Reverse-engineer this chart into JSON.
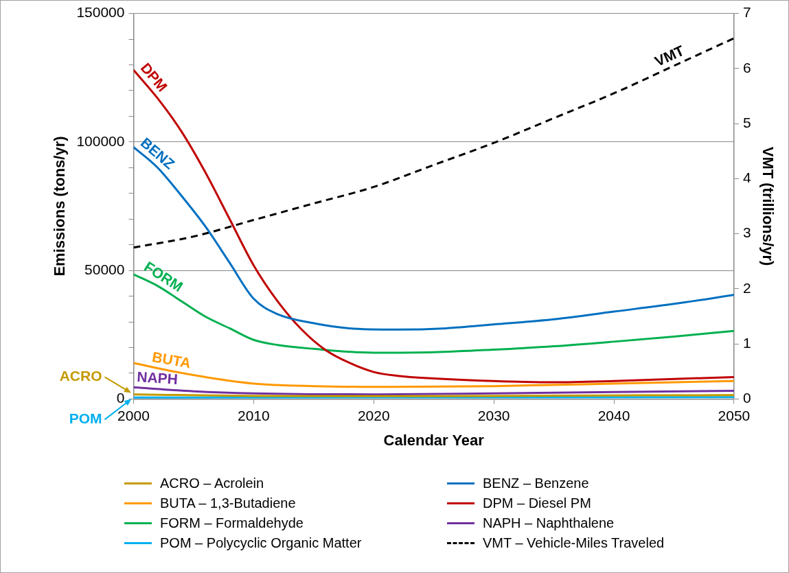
{
  "chart_data": {
    "type": "line",
    "xlabel": "Calendar Year",
    "ylabel": "Emissions (tons/yr)",
    "y2label": "VMT (trillions/yr)",
    "xlim": [
      2000,
      2050
    ],
    "xticks": [
      2000,
      2010,
      2020,
      2030,
      2040,
      2050
    ],
    "ylim": [
      0,
      150000
    ],
    "yticks": [
      0,
      {
        "value": 10000,
        "label": null
      },
      {
        "value": 20000,
        "label": null
      },
      {
        "value": 30000,
        "label": null
      },
      {
        "value": 40000,
        "label": null
      },
      50000,
      {
        "value": 60000,
        "label": null
      },
      {
        "value": 70000,
        "label": null
      },
      {
        "value": 80000,
        "label": null
      },
      {
        "value": 90000,
        "label": null
      },
      100000,
      {
        "value": 110000,
        "label": null
      },
      {
        "value": 120000,
        "label": null
      },
      {
        "value": 130000,
        "label": null
      },
      {
        "value": 140000,
        "label": null
      },
      150000
    ],
    "y2lim": [
      0,
      7
    ],
    "y2ticks": [
      0,
      1,
      2,
      3,
      4,
      5,
      6,
      7
    ],
    "grid": "y",
    "legend": "bottom",
    "marker": "none",
    "series": [
      {
        "name": "ACRO – Acrolein",
        "color": "#c49a00",
        "x": [
          2000,
          2010,
          2020,
          2030,
          2040,
          2050
        ],
        "values": [
          1800,
          1200,
          1100,
          1200,
          1400,
          1500
        ]
      },
      {
        "name": "BENZ – Benzene",
        "color": "#0070c0",
        "x": [
          2000,
          2002,
          2004,
          2006,
          2008,
          2010,
          2012,
          2015,
          2018,
          2022,
          2026,
          2030,
          2035,
          2040,
          2045,
          2050
        ],
        "values": [
          98000,
          90000,
          79000,
          67000,
          53000,
          39000,
          33000,
          29500,
          27500,
          27000,
          27500,
          29000,
          31000,
          34000,
          37000,
          40500
        ]
      },
      {
        "name": "BUTA – 1,3-Butadiene",
        "color": "#ff9900",
        "x": [
          2000,
          2003,
          2006,
          2010,
          2015,
          2020,
          2030,
          2040,
          2050
        ],
        "values": [
          14000,
          11000,
          8500,
          6000,
          5000,
          4700,
          5000,
          6000,
          7000
        ]
      },
      {
        "name": "DPM – Diesel PM",
        "color": "#c00000",
        "x": [
          2000,
          2002,
          2004,
          2006,
          2008,
          2010,
          2012,
          2014,
          2016,
          2018,
          2020,
          2022,
          2025,
          2030,
          2035,
          2040,
          2045,
          2050
        ],
        "values": [
          128000,
          117000,
          104000,
          88000,
          70000,
          52000,
          38000,
          27000,
          19000,
          14000,
          10500,
          9000,
          8000,
          7000,
          6500,
          7000,
          7800,
          8500
        ]
      },
      {
        "name": "FORM – Formaldehyde",
        "color": "#00b050",
        "x": [
          2000,
          2002,
          2004,
          2006,
          2008,
          2010,
          2012,
          2015,
          2020,
          2025,
          2030,
          2035,
          2040,
          2045,
          2050
        ],
        "values": [
          48500,
          44000,
          38000,
          32000,
          27500,
          23000,
          21000,
          19500,
          18000,
          18200,
          19200,
          20500,
          22300,
          24300,
          26500
        ]
      },
      {
        "name": "NAPH – Naphthalene",
        "color": "#7030a0",
        "x": [
          2000,
          2005,
          2010,
          2020,
          2030,
          2040,
          2050
        ],
        "values": [
          4500,
          3000,
          2200,
          1800,
          2200,
          2700,
          3200
        ]
      },
      {
        "name": "POM – Polycyclic Organic Matter",
        "color": "#00b0f0",
        "x": [
          2000,
          2050
        ],
        "values": [
          600,
          700
        ]
      },
      {
        "name": "VMT – Vehicle-Miles Traveled",
        "color": "#000000",
        "axis": "y2",
        "line_style": "dashed",
        "x": [
          2000,
          2005,
          2010,
          2015,
          2020,
          2025,
          2030,
          2035,
          2040,
          2045,
          2050
        ],
        "values": [
          2.75,
          2.95,
          3.25,
          3.55,
          3.85,
          4.25,
          4.65,
          5.1,
          5.55,
          6.05,
          6.55
        ]
      }
    ],
    "annotations": [
      {
        "text": "DPM",
        "x": 2000,
        "y": 128000
      },
      {
        "text": "BENZ",
        "x": 2000,
        "y": 98000
      },
      {
        "text": "FORM",
        "x": 2002,
        "y": 44000
      },
      {
        "text": "BUTA",
        "x": 2003,
        "y": 11000
      },
      {
        "text": "NAPH",
        "x": 2000,
        "y": 4500
      },
      {
        "text": "VMT",
        "x": 2045,
        "y": 129600
      },
      {
        "text": "ACRO",
        "x": 2000,
        "y": 1800
      },
      {
        "text": "POM",
        "x": 2000,
        "y": 600
      }
    ]
  }
}
